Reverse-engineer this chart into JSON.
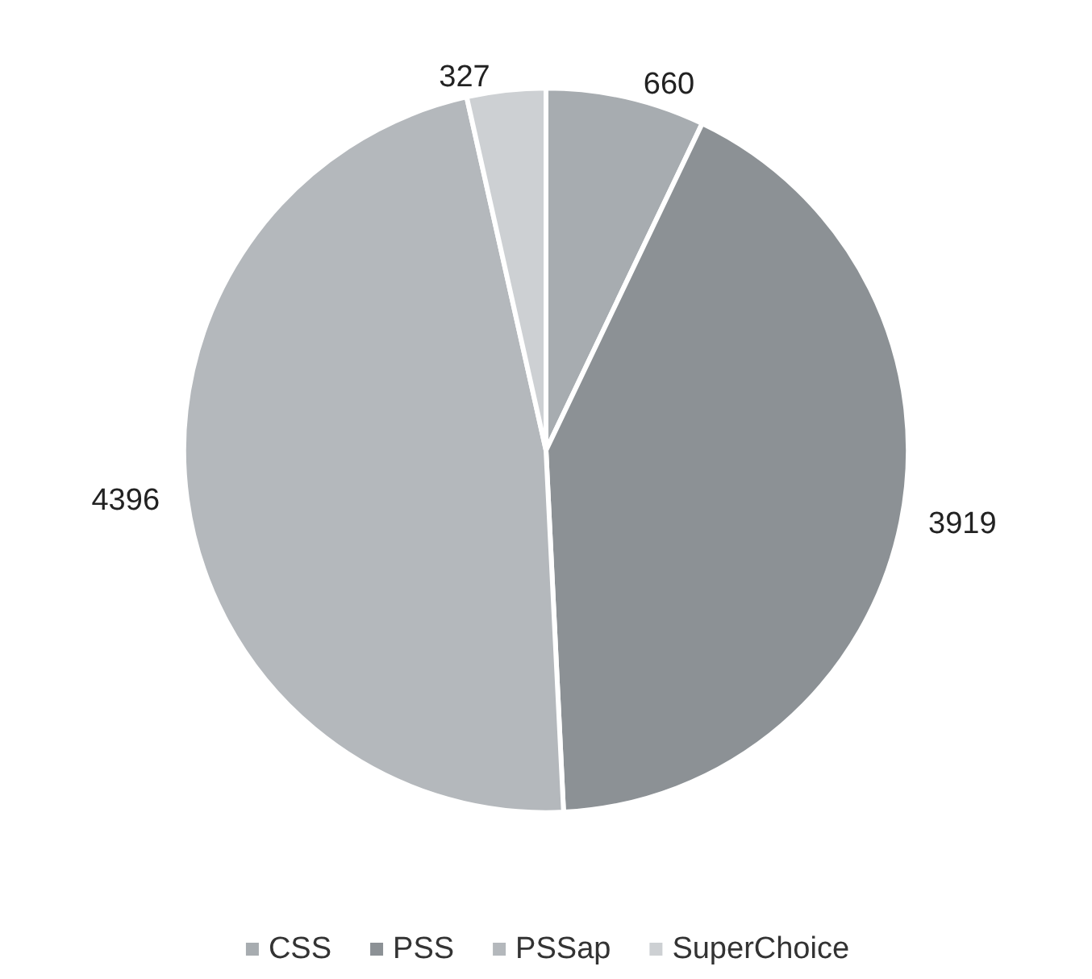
{
  "chart_data": {
    "type": "pie",
    "categories": [
      "CSS",
      "PSS",
      "PSSap",
      "SuperChoice"
    ],
    "values": [
      660,
      3919,
      4396,
      327
    ],
    "colors": [
      "#a7acb0",
      "#8c9195",
      "#b4b8bc",
      "#cdd0d3"
    ],
    "data_labels": true,
    "legend": "bottom"
  }
}
